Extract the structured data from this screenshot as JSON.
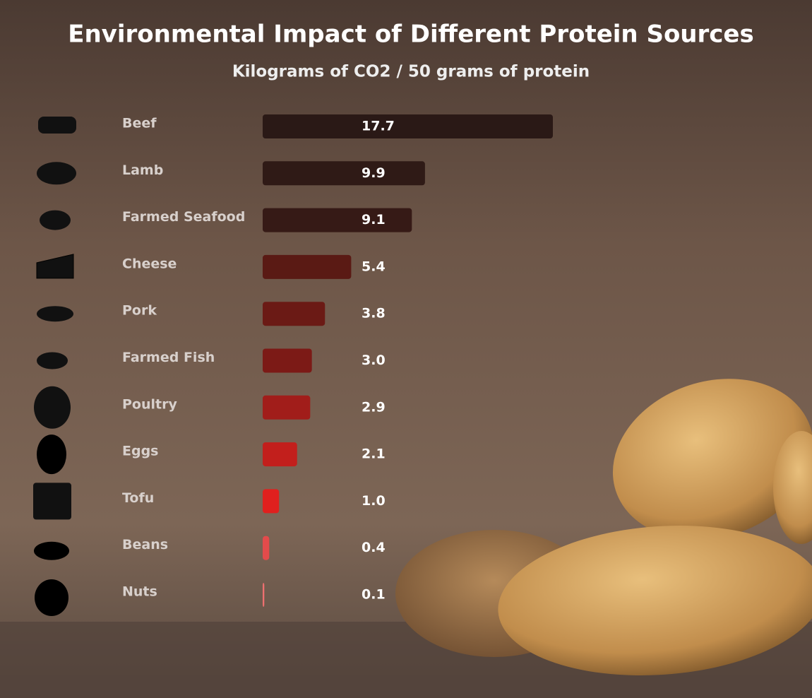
{
  "chart_data": {
    "type": "bar",
    "orientation": "horizontal",
    "title": "Environmental Impact of Different Protein Sources",
    "subtitle": "Kilograms of CO2 / 50 grams of protein",
    "categories": [
      "Beef",
      "Lamb",
      "Farmed Seafood",
      "Cheese",
      "Pork",
      "Farmed Fish",
      "Poultry",
      "Eggs",
      "Tofu",
      "Beans",
      "Nuts"
    ],
    "values": [
      17.7,
      9.9,
      9.1,
      5.4,
      3.8,
      3.0,
      2.9,
      2.1,
      1.0,
      0.4,
      0.1
    ],
    "value_labels": [
      "17.7",
      "9.9",
      "9.1",
      "5.4",
      "3.8",
      "3.0",
      "2.9",
      "2.1",
      "1.0",
      "0.4",
      "0.1"
    ],
    "colors": [
      "#2a1916",
      "#2f1a16",
      "#361a16",
      "#5a1a14",
      "#6b1a15",
      "#7c1a16",
      "#a11d1a",
      "#c21f1c",
      "#e0201e",
      "#e34b4b",
      "#ee7070"
    ]
  }
}
